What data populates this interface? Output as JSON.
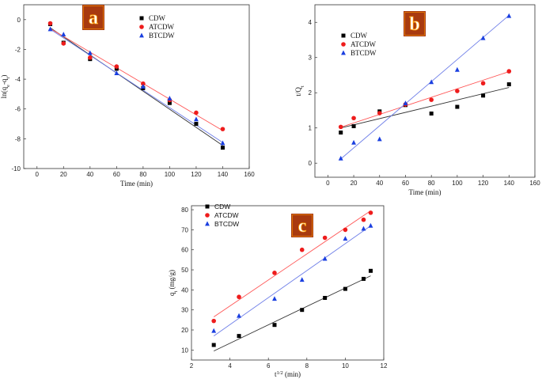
{
  "colors": {
    "CDW": "#000000",
    "ATCDW": "#ee1c1c",
    "BTCDW": "#1a3fe0",
    "fitCDW": "#333333",
    "fitATCDW": "#ff5555",
    "fitBTCDW": "#6f7fe8",
    "badgeFill": "#a83a10",
    "badgeEdge": "#ff9900"
  },
  "chart_data": [
    {
      "id": "a",
      "type": "scatter",
      "badge": "a",
      "xlabel": "Time (min)",
      "ylabel": "ln(qe-qt)",
      "ylabel_parts": [
        "ln(q",
        "e",
        "-q",
        "t",
        ")"
      ],
      "xlim": [
        -10,
        160
      ],
      "ylim": [
        -10,
        1
      ],
      "xticks": [
        0,
        20,
        40,
        60,
        80,
        100,
        120,
        140,
        160
      ],
      "yticks": [
        -10,
        -8,
        -6,
        -4,
        -2,
        0
      ],
      "legend": "top-right",
      "series": [
        {
          "name": "CDW",
          "marker": "square",
          "x": [
            10,
            20,
            40,
            60,
            80,
            100,
            120,
            140
          ],
          "y": [
            -0.3,
            -1.55,
            -2.65,
            -3.3,
            -4.6,
            -5.6,
            -7.0,
            -8.6
          ],
          "fit": [
            [
              10,
              -0.55
            ],
            [
              140,
              -8.45
            ]
          ]
        },
        {
          "name": "ATCDW",
          "marker": "circle",
          "x": [
            10,
            20,
            40,
            60,
            80,
            100,
            120,
            140
          ],
          "y": [
            -0.25,
            -1.6,
            -2.55,
            -3.15,
            -4.3,
            -5.4,
            -6.25,
            -7.35
          ],
          "fit": [
            [
              10,
              -0.6
            ],
            [
              140,
              -7.45
            ]
          ]
        },
        {
          "name": "BTCDW",
          "marker": "triangle",
          "x": [
            10,
            20,
            40,
            60,
            80,
            100,
            120,
            140
          ],
          "y": [
            -0.65,
            -1.0,
            -2.25,
            -3.6,
            -4.5,
            -5.3,
            -6.7,
            -8.3
          ],
          "fit": [
            [
              10,
              -0.65
            ],
            [
              140,
              -8.25
            ]
          ]
        }
      ]
    },
    {
      "id": "b",
      "type": "scatter",
      "badge": "b",
      "xlabel": "Time (min)",
      "ylabel": "t/Qt",
      "ylabel_parts": [
        "t/Q",
        "t"
      ],
      "xlim": [
        -10,
        160
      ],
      "ylim": [
        -0.4,
        4.5
      ],
      "xticks": [
        0,
        20,
        40,
        60,
        80,
        100,
        120,
        140,
        160
      ],
      "yticks": [
        0,
        1,
        2,
        3,
        4
      ],
      "legend": "top-right",
      "series": [
        {
          "name": "CDW",
          "marker": "square",
          "x": [
            10,
            20,
            40,
            60,
            80,
            100,
            120,
            140
          ],
          "y": [
            0.87,
            1.05,
            1.47,
            1.65,
            1.41,
            1.6,
            1.92,
            2.24
          ],
          "fit": [
            [
              10,
              1.0
            ],
            [
              140,
              2.15
            ]
          ]
        },
        {
          "name": "ATCDW",
          "marker": "circle",
          "x": [
            10,
            20,
            40,
            60,
            80,
            100,
            120,
            140
          ],
          "y": [
            1.03,
            1.28,
            1.42,
            1.67,
            1.8,
            2.05,
            2.27,
            2.61
          ],
          "fit": [
            [
              10,
              1.02
            ],
            [
              140,
              2.6
            ]
          ]
        },
        {
          "name": "BTCDW",
          "marker": "triangle",
          "x": [
            10,
            20,
            40,
            60,
            80,
            100,
            120,
            140
          ],
          "y": [
            0.13,
            0.58,
            0.68,
            1.7,
            2.3,
            2.65,
            3.55,
            4.18
          ],
          "fit": [
            [
              10,
              0.12
            ],
            [
              140,
              4.2
            ]
          ]
        }
      ]
    },
    {
      "id": "c",
      "type": "scatter",
      "badge": "c",
      "xlabel": "t1/2 (min)",
      "xlabel_parts": [
        "t",
        "1/2",
        " (min)"
      ],
      "ylabel": "qt (mg/g)",
      "ylabel_parts": [
        "q",
        "t",
        " (mg/g)"
      ],
      "xlim": [
        2,
        12
      ],
      "ylim": [
        5,
        82
      ],
      "xticks": [
        2,
        4,
        6,
        8,
        10,
        12
      ],
      "yticks": [
        10,
        20,
        30,
        40,
        50,
        60,
        70,
        80
      ],
      "legend": "top-left",
      "series": [
        {
          "name": "CDW",
          "marker": "square",
          "x": [
            3.16,
            4.47,
            6.32,
            7.75,
            8.94,
            10.0,
            10.95,
            11.32
          ],
          "y": [
            12.5,
            17.0,
            22.5,
            30.0,
            36.0,
            40.5,
            45.5,
            49.5
          ],
          "fit": [
            [
              3.16,
              9.5
            ],
            [
              11.32,
              47.0
            ]
          ]
        },
        {
          "name": "ATCDW",
          "marker": "circle",
          "x": [
            3.16,
            4.47,
            6.32,
            7.75,
            8.94,
            10.0,
            10.95,
            11.32
          ],
          "y": [
            24.5,
            36.5,
            48.5,
            60.0,
            66.0,
            70.0,
            75.0,
            78.5
          ],
          "fit": [
            [
              3.16,
              26.5
            ],
            [
              11.32,
              79.5
            ]
          ]
        },
        {
          "name": "BTCDW",
          "marker": "triangle",
          "x": [
            3.16,
            4.47,
            6.32,
            7.75,
            8.94,
            10.0,
            10.95,
            11.32
          ],
          "y": [
            19.5,
            27.0,
            35.5,
            45.0,
            55.5,
            65.5,
            70.5,
            72.0
          ],
          "fit": [
            [
              3.16,
              17.0
            ],
            [
              11.32,
              72.0
            ]
          ]
        }
      ]
    }
  ]
}
